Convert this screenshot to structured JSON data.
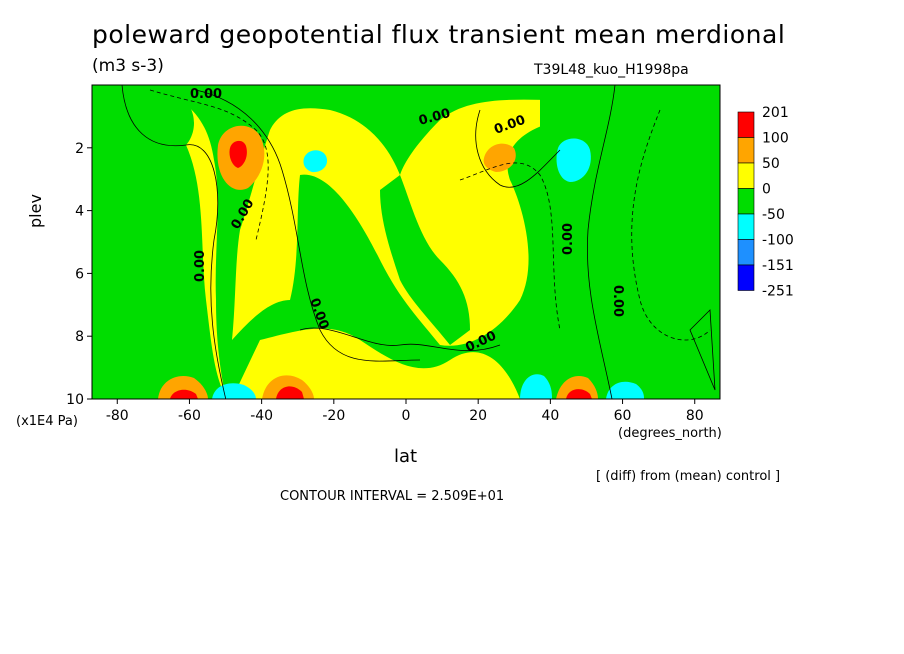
{
  "header": {
    "title": "poleward geopotential flux transient mean merdional",
    "units": "(m3 s-3)",
    "run_id": "T39L48_kuo_H1998pa"
  },
  "footer": {
    "diff_note": "[ (diff) from (mean) control ]",
    "contour_interval": "CONTOUR INTERVAL = 2.509E+01"
  },
  "chart_data": {
    "type": "heatmap",
    "title": "poleward geopotential flux transient mean merdional",
    "subtitle": "(m3 s-3)",
    "xlabel": "lat",
    "xunit": "(degrees_north)",
    "ylabel": "plev",
    "yunit": "(x1E4 Pa)",
    "xlim": [
      -87,
      87
    ],
    "ylim": [
      0,
      10
    ],
    "y_inverted": true,
    "x_ticks": [
      -80,
      -60,
      -40,
      -20,
      0,
      20,
      40,
      60,
      80
    ],
    "y_ticks": [
      2,
      4,
      6,
      8,
      10
    ],
    "colorbar": {
      "labels": [
        "201",
        "100",
        "50",
        "0",
        "-50",
        "-100",
        "-151",
        "-251"
      ],
      "colors": [
        "#ff0000",
        "#ffa500",
        "#ffff00",
        "#00dd00",
        "#00ffff",
        "#1e90ff",
        "#0000ff"
      ],
      "placement": "right"
    },
    "contour_labels": [
      "0.00"
    ],
    "contour_interval": 25.09,
    "regions": [
      {
        "name": "background",
        "level": "0 to 50",
        "color": "#ffff00"
      },
      {
        "name": "west-polar-band",
        "level": "-50 to 0",
        "color": "#00dd00"
      },
      {
        "name": "midlat-green-ribbon-sh",
        "level": "-50 to 0",
        "color": "#00dd00"
      },
      {
        "name": "tropical-green",
        "level": "-50 to 0",
        "color": "#00dd00"
      },
      {
        "name": "east-green-ribbon",
        "level": "-50 to 0",
        "color": "#00dd00"
      },
      {
        "name": "upper-left-orange",
        "level": "50 to 100",
        "color": "#ffa500"
      },
      {
        "name": "upper-left-red",
        "level": "100 to 201",
        "color": "#ff0000"
      },
      {
        "name": "upper-tropic-orange",
        "level": "50 to 100",
        "color": "#ffa500"
      },
      {
        "name": "upper-cyan-sh",
        "level": "-100 to -50",
        "color": "#00ffff"
      },
      {
        "name": "upper-cyan-nh",
        "level": "-100 to -50",
        "color": "#00ffff"
      },
      {
        "name": "surface-orange-1",
        "level": "50 to 100",
        "color": "#ffa500"
      },
      {
        "name": "surface-red-1",
        "level": "100 to 201",
        "color": "#ff0000"
      },
      {
        "name": "surface-cyan-1",
        "level": "-100 to -50",
        "color": "#00ffff"
      },
      {
        "name": "surface-orange-2",
        "level": "50 to 100",
        "color": "#ffa500"
      },
      {
        "name": "surface-red-2",
        "level": "100 to 201",
        "color": "#ff0000"
      },
      {
        "name": "surface-cyan-2",
        "level": "-100 to -50",
        "color": "#00ffff"
      },
      {
        "name": "surface-orange-3",
        "level": "50 to 100",
        "color": "#ffa500"
      },
      {
        "name": "surface-red-3",
        "level": "100 to 201",
        "color": "#ff0000"
      },
      {
        "name": "surface-cyan-3",
        "level": "-100 to -50",
        "color": "#00ffff"
      }
    ]
  }
}
